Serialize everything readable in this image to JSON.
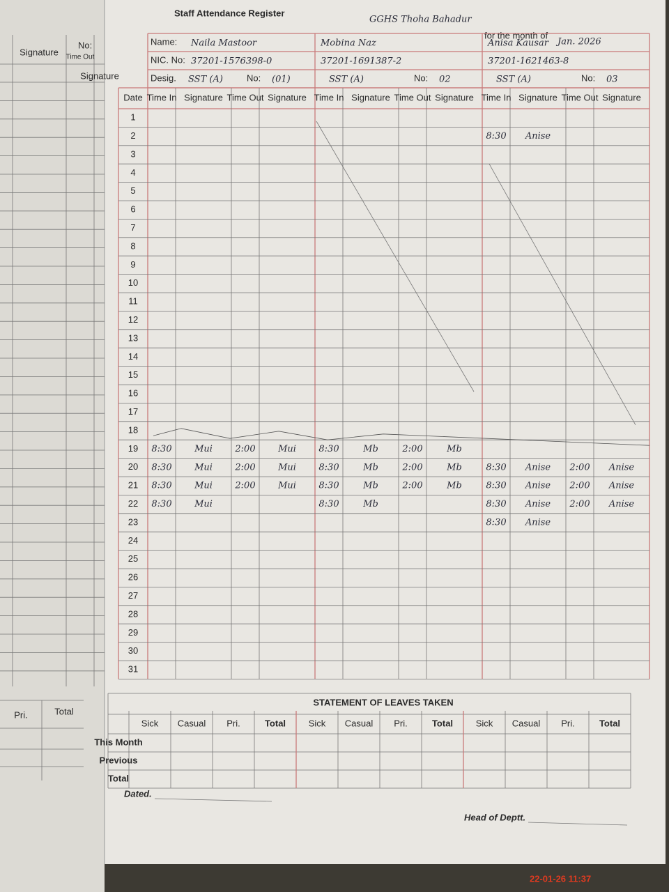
{
  "left_page": {
    "headers": [
      "Signature",
      "Time Out",
      "Signature",
      "No:"
    ],
    "leave_headers": [
      "Pri.",
      "Total"
    ]
  },
  "header": {
    "title": "Staff Attendance Register",
    "school": "GGHS Thoha Bahadur",
    "month_label": "for the month of",
    "month": "Jan. 2026"
  },
  "labels": {
    "name": "Name:",
    "nic": "NIC. No:",
    "desig": "Desig.",
    "no": "No:",
    "date": "Date"
  },
  "columns": [
    "Time In",
    "Signature",
    "Time Out",
    "Signature"
  ],
  "staff": [
    {
      "name": "Naila Mastoor",
      "nic": "37201-1576398-0",
      "desig": "SST (A)",
      "no": "(01)"
    },
    {
      "name": "Mobina Naz",
      "nic": "37201-1691387-2",
      "desig": "SST (A)",
      "no": "02"
    },
    {
      "name": "Anisa Kausar",
      "nic": "37201-1621463-8",
      "desig": "SST (A)",
      "no": "03"
    }
  ],
  "dates": [
    1,
    2,
    3,
    4,
    5,
    6,
    7,
    8,
    9,
    10,
    11,
    12,
    13,
    14,
    15,
    16,
    17,
    18,
    19,
    20,
    21,
    22,
    23,
    24,
    25,
    26,
    27,
    28,
    29,
    30,
    31
  ],
  "entries": [
    {
      "date": 2,
      "staff": [
        null,
        null,
        [
          "8:30",
          "Anise",
          null,
          null
        ]
      ]
    },
    {
      "date": 19,
      "staff": [
        [
          "8:30",
          "Mui",
          "2:00",
          "Mui"
        ],
        [
          "8:30",
          "Mb",
          "2:00",
          "Mb"
        ],
        null
      ]
    },
    {
      "date": 20,
      "staff": [
        [
          "8:30",
          "Mui",
          "2:00",
          "Mui"
        ],
        [
          "8:30",
          "Mb",
          "2:00",
          "Mb"
        ],
        [
          "8:30",
          "Anise",
          "2:00",
          "Anise"
        ]
      ]
    },
    {
      "date": 21,
      "staff": [
        [
          "8:30",
          "Mui",
          "2:00",
          "Mui"
        ],
        [
          "8:30",
          "Mb",
          "2:00",
          "Mb"
        ],
        [
          "8:30",
          "Anise",
          "2:00",
          "Anise"
        ]
      ]
    },
    {
      "date": 22,
      "staff": [
        [
          "8:30",
          "Mui",
          null,
          null
        ],
        [
          "8:30",
          "Mb",
          null,
          null
        ],
        [
          "8:30",
          "Anise",
          "2:00",
          "Anise"
        ]
      ]
    },
    {
      "date": 23,
      "staff": [
        null,
        null,
        [
          "8:30",
          "Anise",
          null,
          null
        ]
      ]
    }
  ],
  "leaves": {
    "title": "STATEMENT OF LEAVES TAKEN",
    "columns": [
      "Sick",
      "Casual",
      "Pri.",
      "Total"
    ],
    "rows": [
      "This Month",
      "Previous",
      "Total"
    ]
  },
  "footer": {
    "dated": "Dated.",
    "head": "Head of Deptt."
  },
  "timestamp": "22-01-26 11:37"
}
